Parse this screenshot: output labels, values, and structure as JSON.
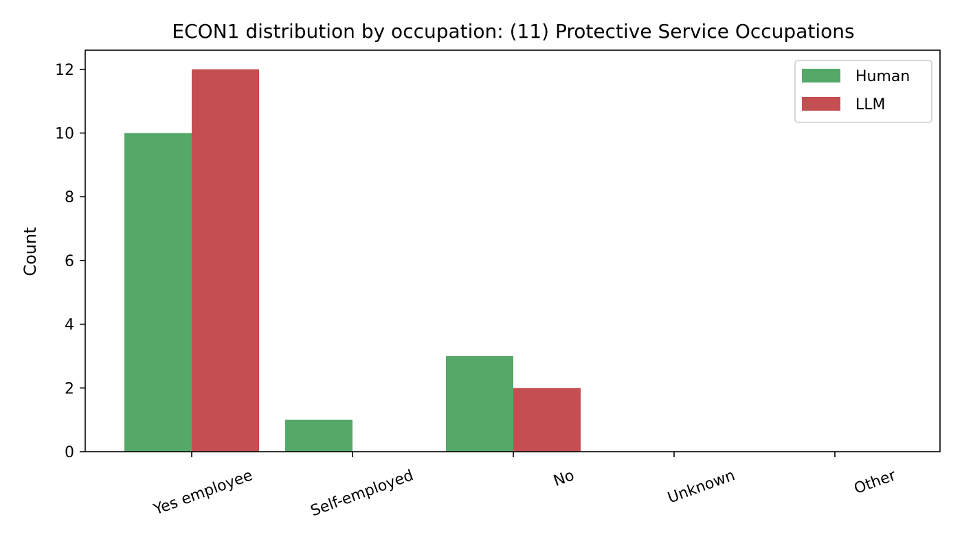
{
  "chart_data": {
    "type": "bar",
    "title": "ECON1 distribution by occupation: (11) Protective Service Occupations",
    "xlabel": "",
    "ylabel": "Count",
    "categories": [
      "Yes employee",
      "Self-employed",
      "No",
      "Unknown",
      "Other"
    ],
    "series": [
      {
        "name": "Human",
        "color": "#55a868",
        "values": [
          10,
          1,
          3,
          0,
          0
        ]
      },
      {
        "name": "LLM",
        "color": "#c44e52",
        "values": [
          12,
          0,
          2,
          0,
          0
        ]
      }
    ],
    "ylim": [
      0,
      12.6
    ],
    "yticks": [
      "0",
      "2",
      "4",
      "6",
      "8",
      "10",
      "12"
    ],
    "grid": false,
    "legend_position": "top-right"
  }
}
